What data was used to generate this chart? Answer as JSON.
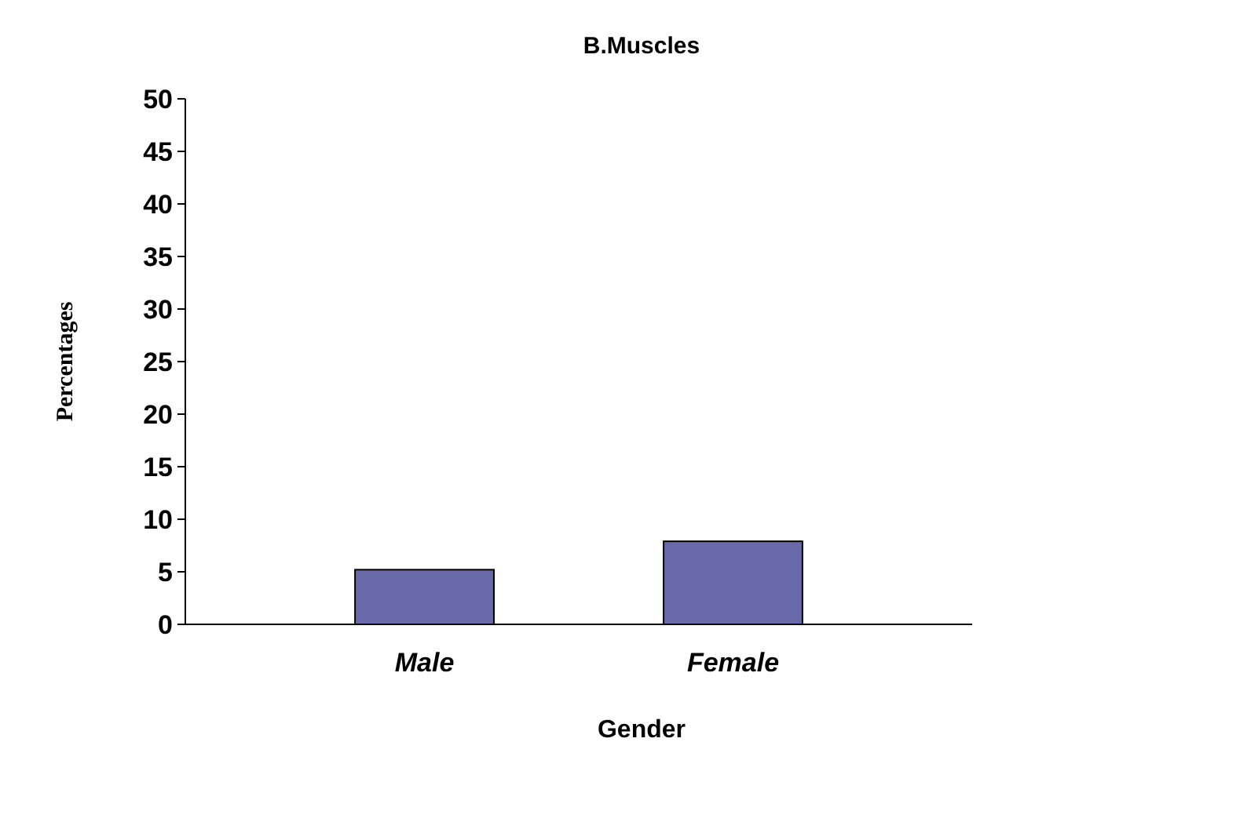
{
  "chart_data": {
    "type": "bar",
    "title": "B.Muscles",
    "xlabel": "Gender",
    "ylabel": "Percentages",
    "categories": [
      "Male",
      "Female"
    ],
    "values": [
      5.2,
      7.9
    ],
    "color": "#6a6aaa",
    "ylim": [
      0,
      50
    ],
    "yticks": [
      0,
      5,
      10,
      15,
      20,
      25,
      30,
      35,
      40,
      45,
      50
    ],
    "grid": false
  }
}
